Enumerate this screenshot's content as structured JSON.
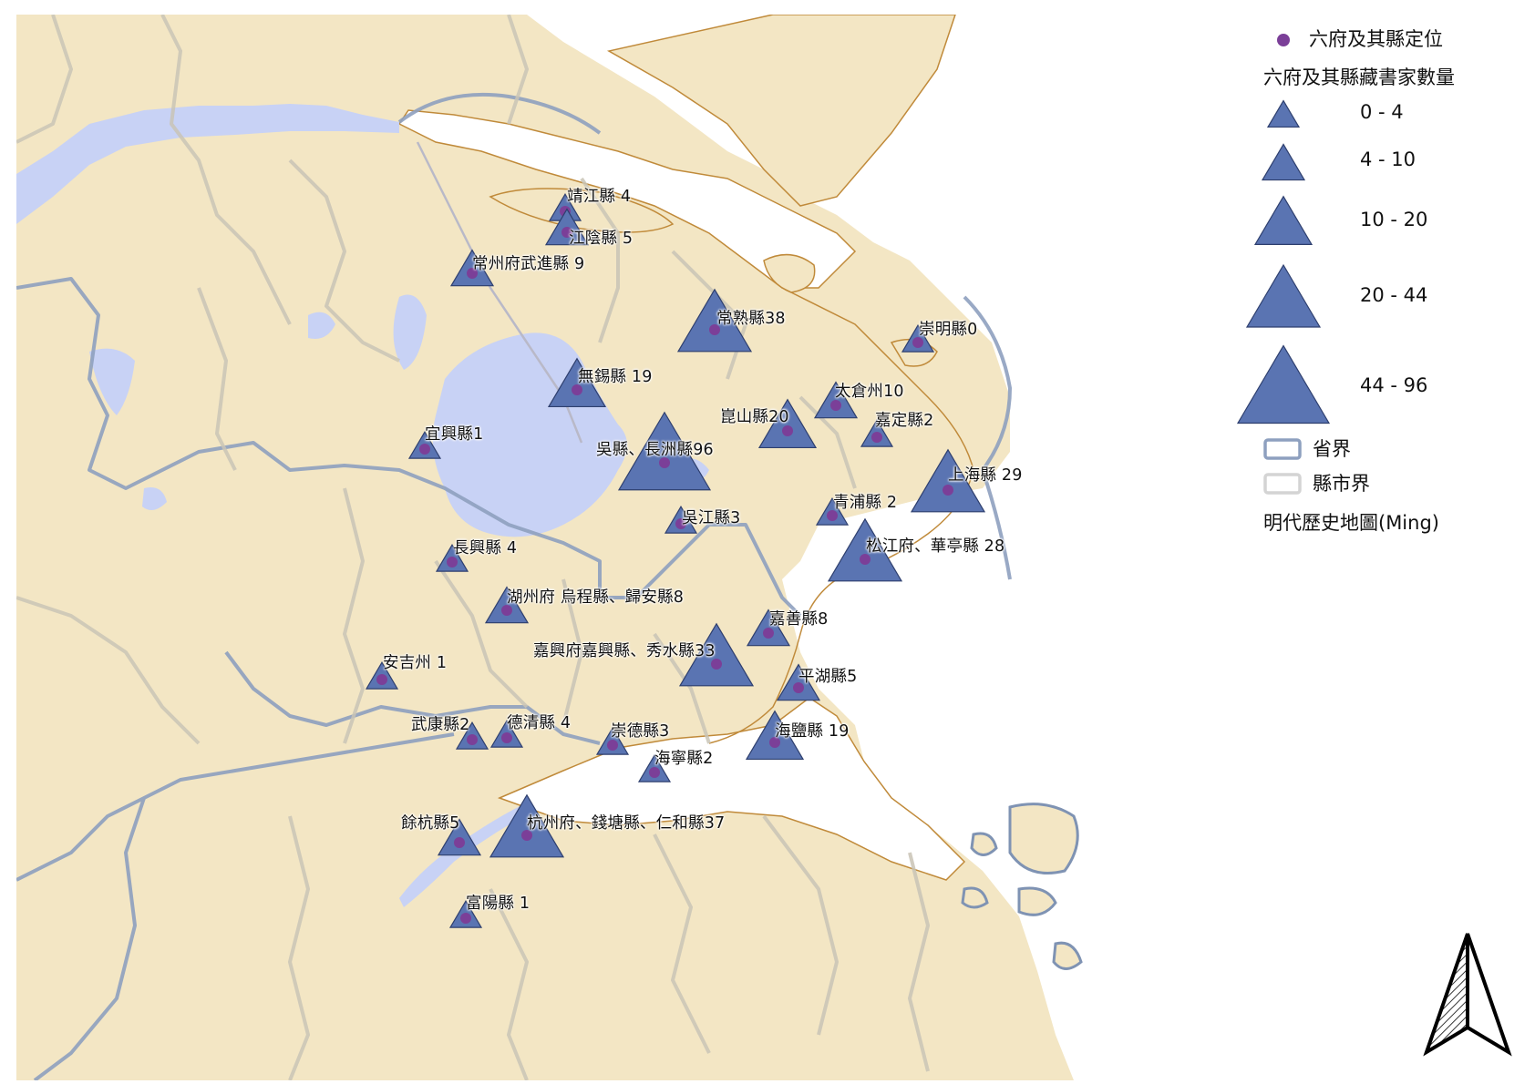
{
  "map": {
    "places": [
      {
        "id": "jingjiang",
        "label": "靖江縣 4",
        "class": 0
      },
      {
        "id": "jiangyin",
        "label": "江陰縣 5",
        "class": 1
      },
      {
        "id": "wujin",
        "label": "常州府武進縣 9",
        "class": 1
      },
      {
        "id": "changshu",
        "label": "常熟縣38",
        "class": 3
      },
      {
        "id": "chongming",
        "label": "崇明縣0",
        "class": 0
      },
      {
        "id": "wuxi",
        "label": "無錫縣 19",
        "class": 2
      },
      {
        "id": "taicang",
        "label": "太倉州10",
        "class": 1
      },
      {
        "id": "kunshan",
        "label": "崑山縣20",
        "class": 2
      },
      {
        "id": "jiading",
        "label": "嘉定縣2",
        "class": 0
      },
      {
        "id": "yixing",
        "label": "宜興縣1",
        "class": 0
      },
      {
        "id": "wu-changzhou",
        "label": "吳縣、長洲縣96",
        "class": 4
      },
      {
        "id": "shanghai",
        "label": "上海縣 29",
        "class": 3
      },
      {
        "id": "qingpu",
        "label": "青浦縣 2",
        "class": 0
      },
      {
        "id": "wujiang",
        "label": "吳江縣3",
        "class": 0
      },
      {
        "id": "songjiang",
        "label": "松江府、華亭縣 28",
        "class": 3
      },
      {
        "id": "changxing",
        "label": "長興縣 4",
        "class": 0
      },
      {
        "id": "huzhou",
        "label": "湖州府 烏程縣、歸安縣8",
        "class": 1
      },
      {
        "id": "jiashan",
        "label": "嘉善縣8",
        "class": 1
      },
      {
        "id": "jiaxing",
        "label": "嘉興府嘉興縣、秀水縣33",
        "class": 3
      },
      {
        "id": "anji",
        "label": "安吉州 1",
        "class": 0
      },
      {
        "id": "pinghu",
        "label": "平湖縣5",
        "class": 1
      },
      {
        "id": "haiyan",
        "label": "海鹽縣 19",
        "class": 2
      },
      {
        "id": "wukang",
        "label": "武康縣2",
        "class": 0
      },
      {
        "id": "deqing",
        "label": "德清縣 4",
        "class": 0
      },
      {
        "id": "chongde",
        "label": "崇德縣3",
        "class": 0
      },
      {
        "id": "haining",
        "label": "海寧縣2",
        "class": 0
      },
      {
        "id": "yuhang",
        "label": "餘杭縣5",
        "class": 1
      },
      {
        "id": "hangzhou",
        "label": "杭州府、錢塘縣、仁和縣37",
        "class": 3
      },
      {
        "id": "fuyang",
        "label": "富陽縣 1",
        "class": 0
      }
    ]
  },
  "legend": {
    "point_layer": "六府及其縣定位",
    "size_layer": "六府及其縣藏書家數量",
    "classes": [
      "0 - 4",
      "4 - 10",
      "10 - 20",
      "20 - 44",
      "44 - 96"
    ],
    "province_boundary": "省界",
    "county_boundary": "縣市界",
    "basemap": "明代歷史地圖(Ming)"
  },
  "colors": {
    "land": "#f3e6c4",
    "water": "#c8d2f5",
    "triangle_fill": "#5a74b2",
    "triangle_stroke": "#2e3f6e",
    "point": "#7b3f98",
    "province_line": "#7f93b3",
    "county_line": "#c9c4b6",
    "coast_line": "#c08a3a"
  },
  "icons": {
    "north_arrow": "north-arrow-icon"
  }
}
